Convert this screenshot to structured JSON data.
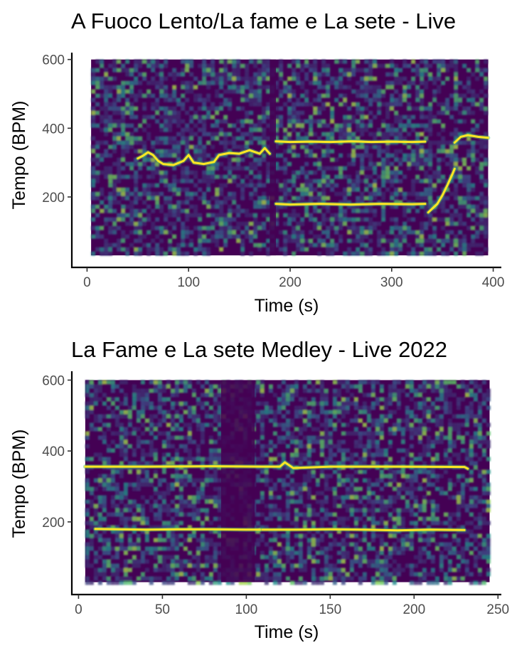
{
  "chart_data": [
    {
      "type": "heatmap",
      "title": "A Fuoco Lento/La fame e La sete - Live",
      "xlabel": "Time (s)",
      "ylabel": "Tempo (BPM)",
      "xlim": [
        -15,
        408
      ],
      "ylim": [
        -5,
        620
      ],
      "data_xrange": [
        4,
        395
      ],
      "data_yrange": [
        30,
        600
      ],
      "x_ticks": [
        0,
        100,
        200,
        300,
        400
      ],
      "y_ticks": [
        200,
        400,
        600
      ],
      "colormap": [
        "#440154",
        "#3b528b",
        "#21918c",
        "#5ec962",
        "#fde725"
      ],
      "background_color": "#440154",
      "grid": false,
      "tempo_tracks": [
        {
          "name": "",
          "points": [
            [
              50,
              312
            ],
            [
              55,
              320
            ],
            [
              60,
              330
            ],
            [
              65,
              322
            ],
            [
              70,
              305
            ],
            [
              75,
              296
            ],
            [
              85,
              293
            ],
            [
              95,
              305
            ],
            [
              100,
              322
            ],
            [
              105,
              300
            ],
            [
              115,
              296
            ],
            [
              125,
              302
            ],
            [
              130,
              322
            ],
            [
              140,
              328
            ],
            [
              150,
              326
            ],
            [
              160,
              336
            ],
            [
              170,
              326
            ],
            [
              175,
              342
            ],
            [
              180,
              326
            ]
          ]
        },
        {
          "name": "",
          "points": [
            [
              186,
              362
            ],
            [
              200,
              360
            ],
            [
              220,
              361
            ],
            [
              240,
              360
            ],
            [
              260,
              362
            ],
            [
              280,
              360
            ],
            [
              300,
              361
            ],
            [
              320,
              360
            ],
            [
              333,
              361
            ]
          ]
        },
        {
          "name": "",
          "points": [
            [
              186,
              180
            ],
            [
              200,
              178
            ],
            [
              230,
              180
            ],
            [
              260,
              178
            ],
            [
              290,
              180
            ],
            [
              320,
              179
            ],
            [
              333,
              180
            ]
          ]
        },
        {
          "name": "",
          "points": [
            [
              336,
              155
            ],
            [
              345,
              180
            ],
            [
              350,
              205
            ],
            [
              355,
              235
            ],
            [
              360,
              268
            ],
            [
              362,
              282
            ]
          ]
        },
        {
          "name": "",
          "points": [
            [
              362,
              358
            ],
            [
              368,
              375
            ],
            [
              375,
              380
            ],
            [
              385,
              375
            ],
            [
              395,
              372
            ]
          ]
        }
      ],
      "dark_bands": [
        [
          180,
          186
        ]
      ]
    },
    {
      "type": "heatmap",
      "title": "La Fame e La sete Medley - Live 2022",
      "xlabel": "Time (s)",
      "ylabel": "Tempo (BPM)",
      "xlim": [
        -4,
        252
      ],
      "ylim": [
        -5,
        625
      ],
      "data_xrange": [
        4,
        245
      ],
      "data_yrange": [
        30,
        600
      ],
      "x_ticks": [
        0,
        50,
        100,
        150,
        200,
        250
      ],
      "y_ticks": [
        200,
        400,
        600
      ],
      "colormap": [
        "#440154",
        "#3b528b",
        "#21918c",
        "#5ec962",
        "#fde725"
      ],
      "background_color": "#440154",
      "grid": false,
      "tempo_tracks": [
        {
          "name": "",
          "points": [
            [
              4,
              356
            ],
            [
              40,
              356
            ],
            [
              80,
              357
            ],
            [
              110,
              356
            ],
            [
              120,
              356
            ],
            [
              123,
              368
            ],
            [
              128,
              352
            ],
            [
              150,
              356
            ],
            [
              190,
              356
            ],
            [
              230,
              355
            ],
            [
              232,
              350
            ]
          ]
        },
        {
          "name": "",
          "points": [
            [
              108,
              178
            ],
            [
              130,
              178
            ],
            [
              150,
              179
            ],
            [
              170,
              178
            ],
            [
              190,
              176
            ],
            [
              210,
              178
            ],
            [
              230,
              177
            ]
          ]
        },
        {
          "name": "",
          "points": [
            [
              10,
              180
            ],
            [
              40,
              178
            ],
            [
              60,
              179
            ],
            [
              80,
              179
            ],
            [
              100,
              178
            ],
            [
              108,
              178
            ]
          ]
        }
      ],
      "dark_bands": [
        [
          85,
          105
        ]
      ]
    }
  ]
}
